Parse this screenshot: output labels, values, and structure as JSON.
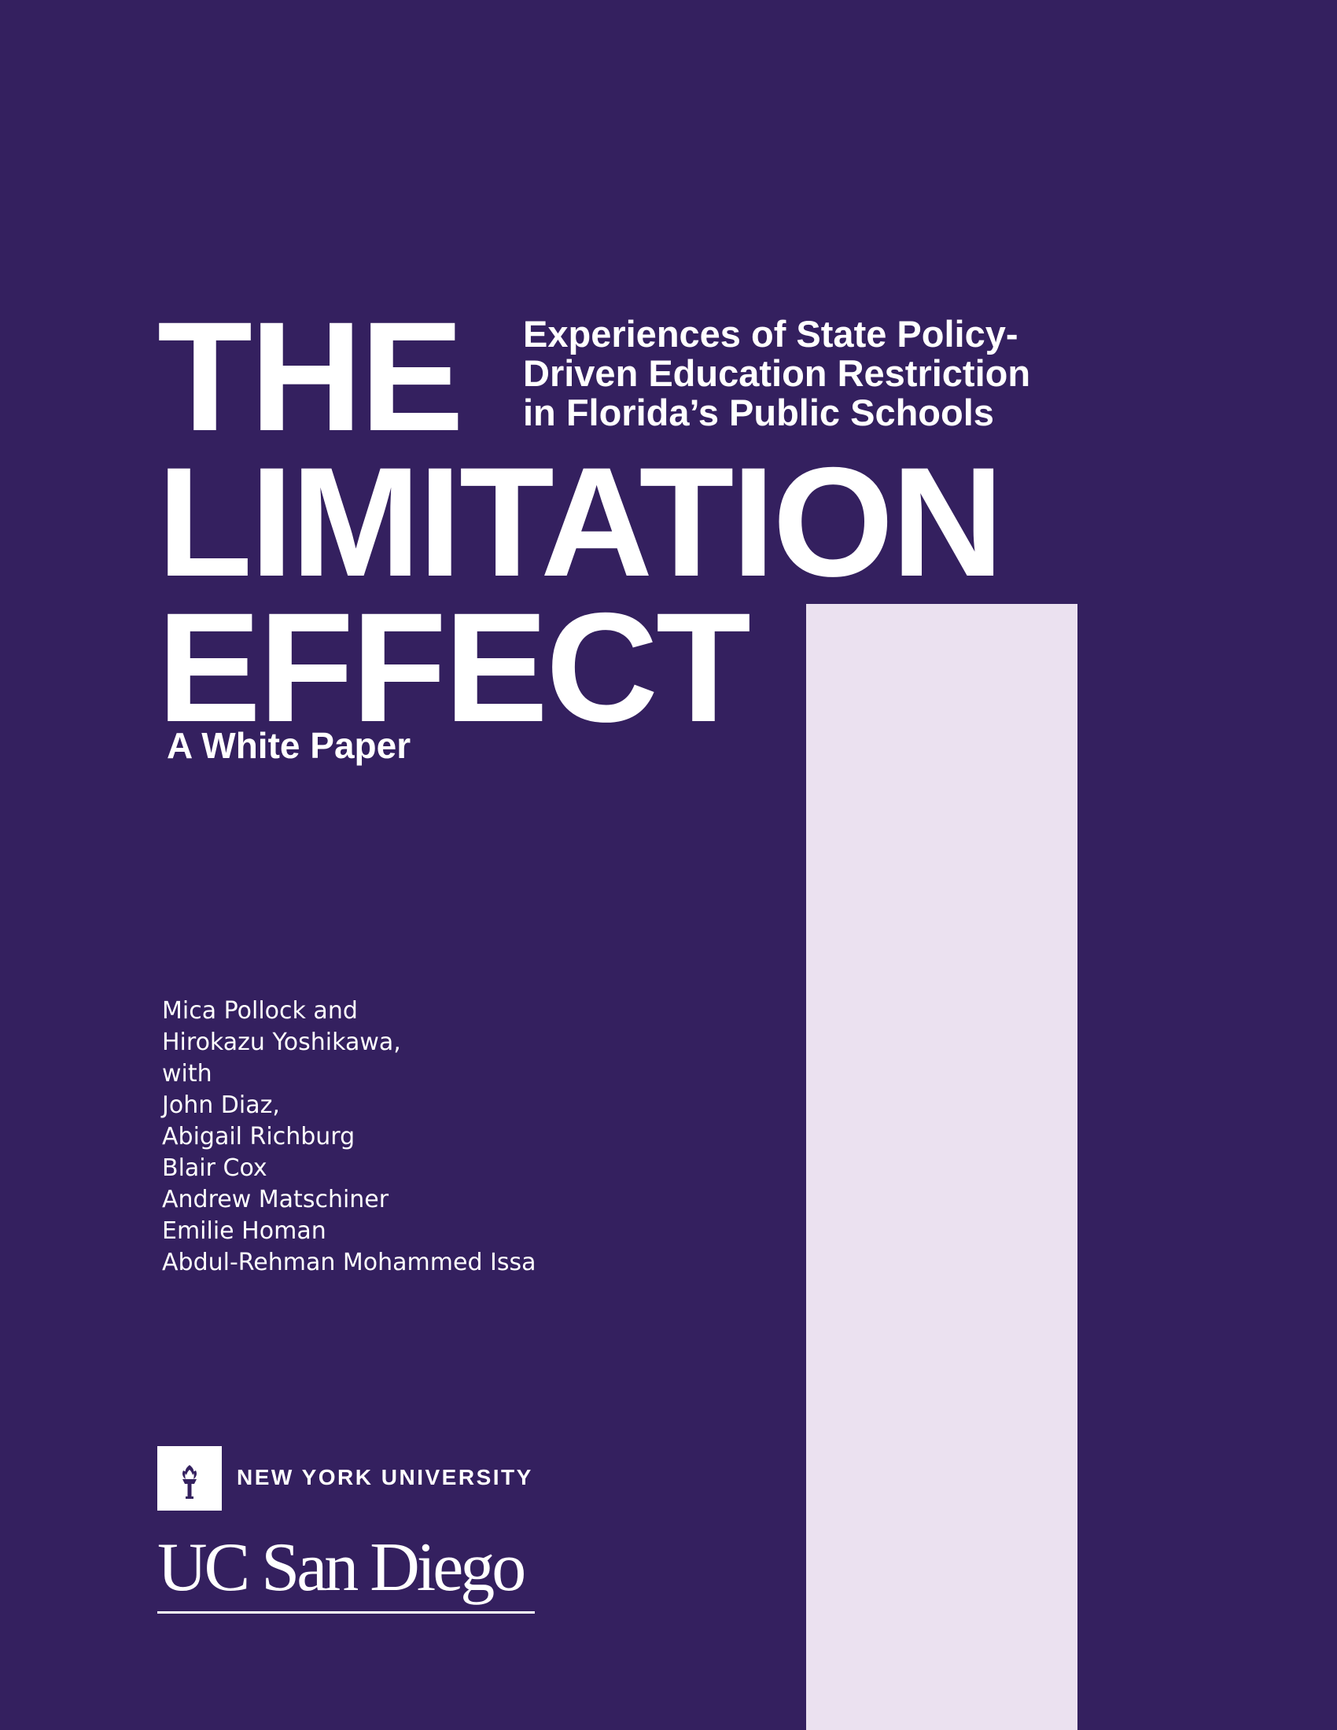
{
  "cover": {
    "title_lines": [
      "THE",
      "LIMITATION",
      "EFFECT"
    ],
    "subtitle_lines": [
      "Experiences of State Policy-",
      "Driven Education Restriction",
      "in Florida’s Public Schools"
    ],
    "document_type": "A White Paper",
    "authors": [
      "Mica Pollock and",
      "Hirokazu Yoshikawa,",
      "with",
      "John Diaz,",
      "Abigail Richburg",
      "Blair Cox",
      "Andrew Matschiner",
      "Emilie Homan",
      "Abdul-Rehman Mohammed Issa"
    ]
  },
  "institutions": {
    "nyu": {
      "icon": "torch-icon",
      "name": "NEW YORK UNIVERSITY"
    },
    "ucsd": {
      "wordmark": "UC San Diego"
    }
  },
  "colors": {
    "background": "#34205f",
    "accent_bar": "#ebe1f0",
    "text": "#ffffff"
  }
}
